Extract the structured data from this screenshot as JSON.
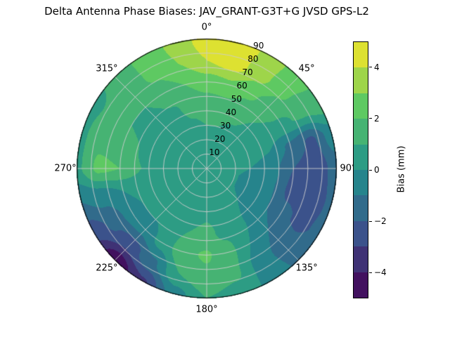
{
  "chart_data": {
    "type": "heatmap",
    "projection": "polar",
    "title": "Delta Antenna Phase Biases: JAV_GRANT-G3T+G JVSD GPS-L2",
    "theta_ticks": [
      {
        "angle": 0,
        "label": "0°"
      },
      {
        "angle": 45,
        "label": "45°"
      },
      {
        "angle": 90,
        "label": "90°"
      },
      {
        "angle": 135,
        "label": "135°"
      },
      {
        "angle": 180,
        "label": "180°"
      },
      {
        "angle": 225,
        "label": "225°"
      },
      {
        "angle": 270,
        "label": "270°"
      },
      {
        "angle": 315,
        "label": "315°"
      }
    ],
    "r_ticks": [
      {
        "value": 10,
        "label": "10"
      },
      {
        "value": 20,
        "label": "20"
      },
      {
        "value": 30,
        "label": "30"
      },
      {
        "value": 40,
        "label": "40"
      },
      {
        "value": 50,
        "label": "50"
      },
      {
        "value": 60,
        "label": "60"
      },
      {
        "value": 70,
        "label": "70"
      },
      {
        "value": 80,
        "label": "80"
      },
      {
        "value": 90,
        "label": "90"
      }
    ],
    "r_label_angle_deg": 22.5,
    "r_max": 90,
    "colorbar": {
      "label": "Bias (mm)",
      "vmin": -5,
      "vmax": 5,
      "level_step": 1,
      "colormap": "viridis",
      "ticks": [
        {
          "value": -4,
          "label": "−4"
        },
        {
          "value": -2,
          "label": "−2"
        },
        {
          "value": 0,
          "label": "0"
        },
        {
          "value": 2,
          "label": "2"
        },
        {
          "value": 4,
          "label": "4"
        }
      ],
      "colormap_anchors": [
        [
          0.0,
          "#440154"
        ],
        [
          0.25,
          "#3b528b"
        ],
        [
          0.5,
          "#21918c"
        ],
        [
          0.75,
          "#5ec962"
        ],
        [
          1.0,
          "#fde725"
        ]
      ]
    },
    "grid": {
      "azimuth_step_deg": 15,
      "azimuths": [
        0,
        15,
        30,
        45,
        60,
        75,
        90,
        105,
        120,
        135,
        150,
        165,
        180,
        195,
        210,
        225,
        240,
        255,
        270,
        285,
        300,
        315,
        330,
        345
      ],
      "zenith_rings": [
        0,
        15,
        30,
        45,
        60,
        75,
        90
      ],
      "bias_mm": [
        [
          0.5,
          0.8,
          1.0,
          1.5,
          2.5,
          4.0,
          4.6
        ],
        [
          0.5,
          0.8,
          1.0,
          1.6,
          2.8,
          4.5,
          4.9
        ],
        [
          0.5,
          0.7,
          0.9,
          1.3,
          2.2,
          3.4,
          3.6
        ],
        [
          0.5,
          0.6,
          0.7,
          1.0,
          1.6,
          2.2,
          2.4
        ],
        [
          0.5,
          0.5,
          0.5,
          0.6,
          0.8,
          1.2,
          1.5
        ],
        [
          0.5,
          0.4,
          0.3,
          0.0,
          -1.2,
          -2.2,
          -0.5
        ],
        [
          0.5,
          0.3,
          0.0,
          -0.6,
          -2.0,
          -2.8,
          -1.5
        ],
        [
          0.5,
          0.2,
          -0.2,
          -0.8,
          -2.2,
          -2.6,
          -1.8
        ],
        [
          0.5,
          0.2,
          -0.2,
          -0.8,
          -1.8,
          -2.2,
          -1.8
        ],
        [
          0.5,
          0.3,
          0.0,
          -0.4,
          -1.0,
          -1.5,
          -1.2
        ],
        [
          0.5,
          0.4,
          0.3,
          0.2,
          0.0,
          -0.4,
          -0.2
        ],
        [
          0.5,
          0.5,
          0.5,
          0.8,
          1.3,
          1.2,
          0.6
        ],
        [
          0.5,
          0.5,
          0.8,
          1.2,
          2.1,
          1.8,
          1.0
        ],
        [
          0.5,
          0.5,
          0.6,
          1.0,
          1.8,
          1.0,
          -0.5
        ],
        [
          0.5,
          0.4,
          0.4,
          0.5,
          0.4,
          -1.2,
          -3.2
        ],
        [
          0.5,
          0.4,
          0.3,
          0.2,
          -0.6,
          -2.6,
          -4.8
        ],
        [
          0.5,
          0.4,
          0.3,
          0.2,
          -0.5,
          -1.8,
          -2.6
        ],
        [
          0.5,
          0.4,
          0.4,
          0.5,
          0.0,
          -0.6,
          -1.0
        ],
        [
          0.5,
          0.5,
          0.6,
          1.0,
          2.0,
          2.2,
          0.8
        ],
        [
          0.5,
          0.5,
          0.6,
          0.9,
          1.6,
          1.8,
          0.8
        ],
        [
          0.5,
          0.5,
          0.5,
          0.7,
          1.0,
          1.2,
          0.8
        ],
        [
          0.5,
          0.5,
          0.5,
          0.6,
          1.0,
          1.4,
          1.2
        ],
        [
          0.5,
          0.6,
          0.7,
          0.9,
          1.5,
          2.2,
          2.4
        ],
        [
          0.5,
          0.7,
          0.9,
          1.2,
          2.0,
          3.0,
          3.2
        ]
      ]
    }
  }
}
